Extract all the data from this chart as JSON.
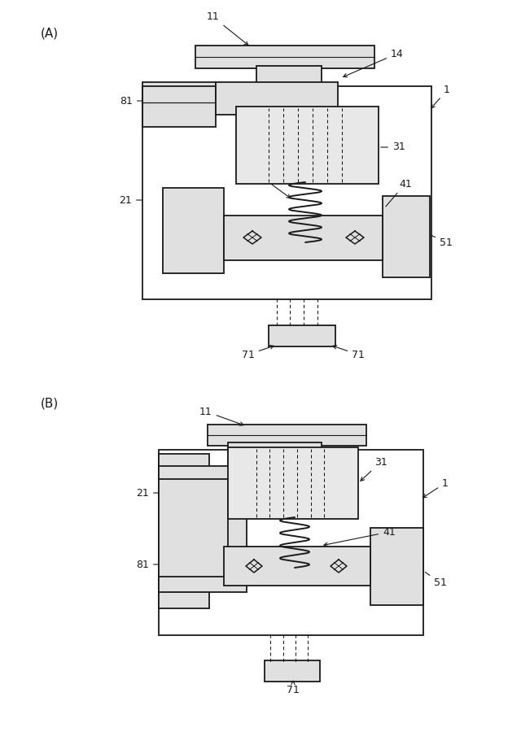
{
  "bg": "#ffffff",
  "lc": "#1a1a1a",
  "lw": 1.3,
  "fig_w": 6.4,
  "fig_h": 9.16,
  "fc_light": "#e8e8e8",
  "fc_none": "none"
}
